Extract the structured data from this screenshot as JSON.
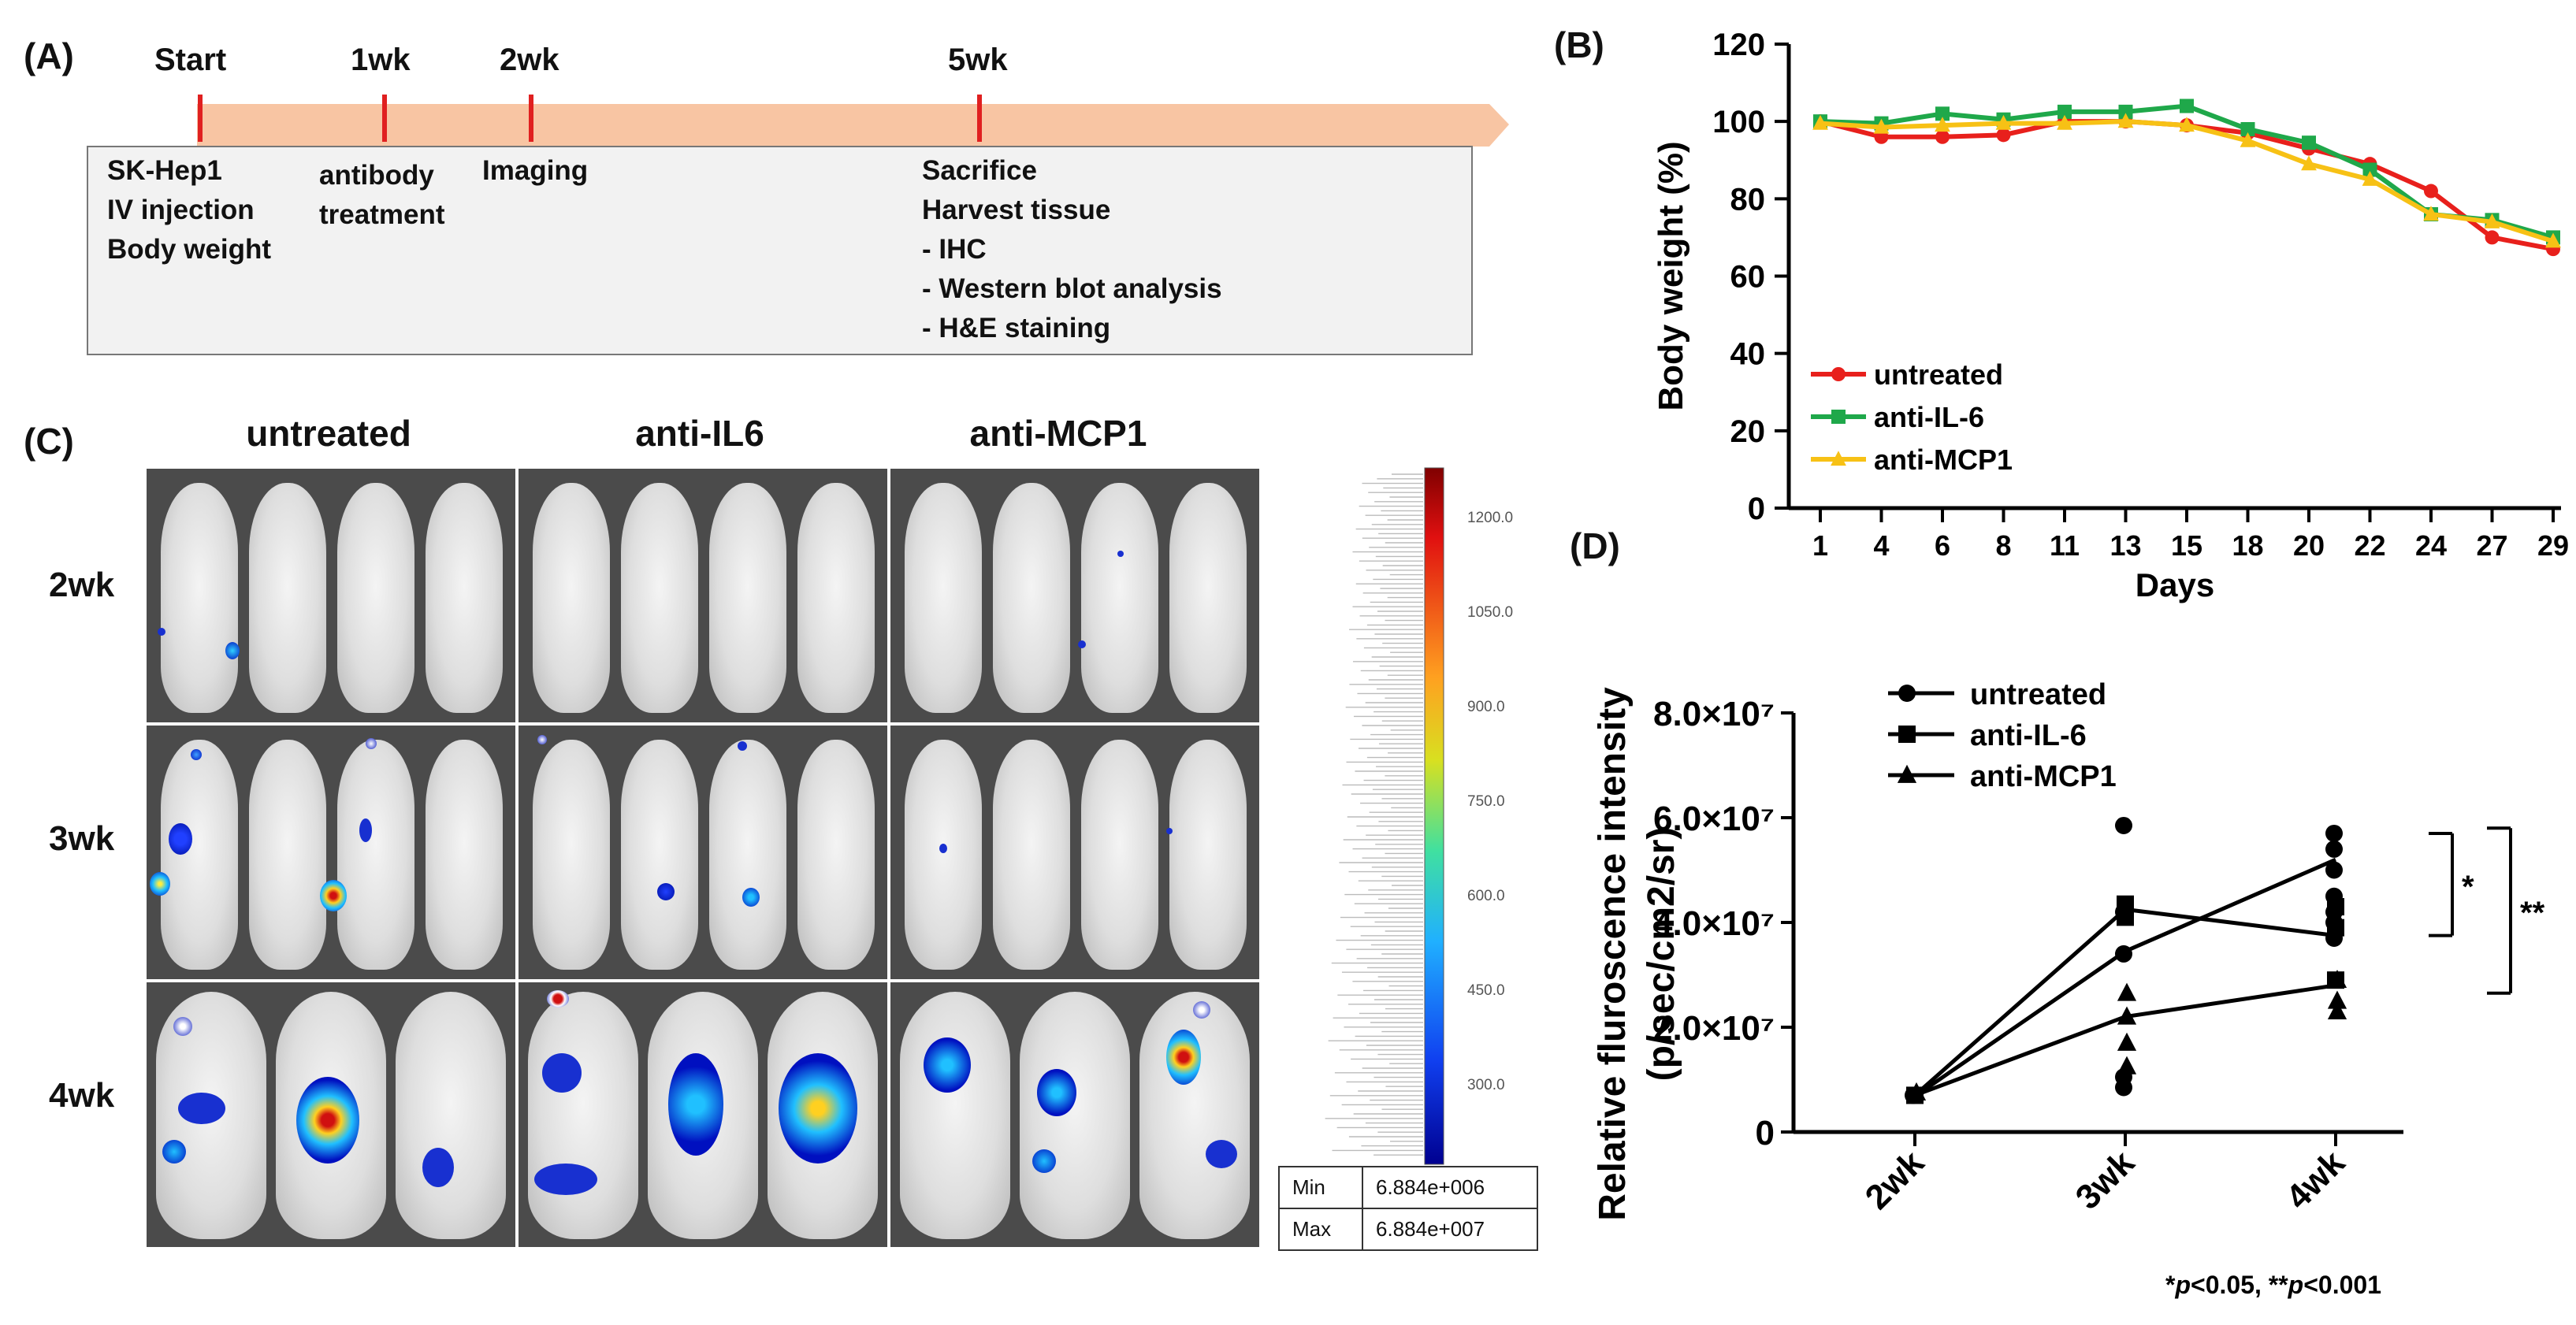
{
  "panel_labels": {
    "a": "(A)",
    "b": "(B)",
    "c": "(C)",
    "d": "(D)"
  },
  "timeline": {
    "ticks": [
      "Start",
      "1wk",
      "2wk",
      "5wk"
    ],
    "boxes": [
      "SK-Hep1\nIV injection\nBody weight",
      "antibody\ntreatment",
      "Imaging",
      "Sacrifice\nHarvest tissue\n- IHC\n- Western blot analysis\n- H&E staining"
    ]
  },
  "imaging": {
    "columns": [
      "untreated",
      "anti-IL6",
      "anti-MCP1"
    ],
    "rows": [
      "2wk",
      "3wk",
      "4wk"
    ],
    "colorbar_ticks": [
      "1200.0",
      "1050.0",
      "900.0",
      "750.0",
      "600.0",
      "450.0",
      "300.0"
    ],
    "min_label": "Min",
    "min_value": "6.884e+006",
    "max_label": "Max",
    "max_value": "6.884e+007"
  },
  "chart_data": [
    {
      "id": "B",
      "type": "line",
      "xlabel": "Days",
      "ylabel": "Body weight (%)",
      "categories": [
        "1",
        "4",
        "6",
        "8",
        "11",
        "13",
        "15",
        "18",
        "20",
        "22",
        "24",
        "27",
        "29"
      ],
      "ylim": [
        0,
        120
      ],
      "yticks": [
        "0",
        "20",
        "40",
        "60",
        "80",
        "100",
        "120"
      ],
      "legend_position": "bottom-left",
      "series": [
        {
          "name": "untreated",
          "color": "#e8201c",
          "marker": "circle",
          "values": [
            100,
            96,
            96,
            96.5,
            100,
            100,
            99,
            97,
            93,
            89,
            82,
            70,
            67
          ]
        },
        {
          "name": "anti-IL-6",
          "color": "#1fa84a",
          "marker": "square",
          "values": [
            100,
            99.5,
            102,
            100.5,
            102.5,
            102.5,
            104,
            98,
            94.5,
            87.5,
            76,
            74.5,
            70
          ]
        },
        {
          "name": "anti-MCP1",
          "color": "#f7c115",
          "marker": "triangle",
          "values": [
            99.5,
            98.5,
            99,
            99.5,
            99.5,
            100,
            99,
            95,
            89,
            85,
            76,
            74,
            69
          ]
        }
      ]
    },
    {
      "id": "D",
      "type": "scatter",
      "ylabel_line1": "Relative fluroscence intensity",
      "ylabel_line2": "(p/sec/cm2/sr)",
      "categories": [
        "2wk",
        "3wk",
        "4wk"
      ],
      "ylim": [
        0,
        80000000
      ],
      "yticks": [
        {
          "value": 0,
          "label": "0"
        },
        {
          "value": 20000000,
          "label": "2.0×10⁷"
        },
        {
          "value": 40000000,
          "label": "4.0×10⁷"
        },
        {
          "value": 60000000,
          "label": "6.0×10⁷"
        },
        {
          "value": 80000000,
          "label": "8.0×10⁷"
        }
      ],
      "legend_position": "top-left",
      "series": [
        {
          "name": "untreated",
          "marker": "circle",
          "points": [
            [
              0,
              7000000
            ],
            [
              1,
              58500000
            ],
            [
              1,
              42000000
            ],
            [
              1,
              34000000
            ],
            [
              1,
              10500000
            ],
            [
              1,
              8500000
            ],
            [
              2,
              57000000
            ],
            [
              2,
              54000000
            ],
            [
              2,
              50000000
            ],
            [
              2,
              45000000
            ],
            [
              2,
              42000000
            ],
            [
              2,
              40000000
            ],
            [
              2,
              37000000
            ]
          ],
          "mean": [
            6800000,
            34500000,
            52000000
          ]
        },
        {
          "name": "anti-IL-6",
          "marker": "square",
          "points": [
            [
              0,
              7000000
            ],
            [
              1,
              43500000
            ],
            [
              1,
              42000000
            ],
            [
              1,
              41000000
            ],
            [
              2,
              43000000
            ],
            [
              2,
              39000000
            ],
            [
              2,
              29000000
            ]
          ],
          "mean": [
            7000000,
            42500000,
            37500000
          ]
        },
        {
          "name": "anti-MCP1",
          "marker": "triangle",
          "points": [
            [
              0,
              7500000
            ],
            [
              1,
              26500000
            ],
            [
              1,
              22000000
            ],
            [
              1,
              17000000
            ],
            [
              1,
              12500000
            ],
            [
              2,
              29000000
            ],
            [
              2,
              25000000
            ],
            [
              2,
              23000000
            ]
          ],
          "mean": [
            7000000,
            22000000,
            28000000
          ]
        }
      ],
      "significance": [
        {
          "label": "*",
          "from": 57000000,
          "to": 37500000
        },
        {
          "label": "**",
          "from": 58000000,
          "to": 26500000
        }
      ],
      "footnote_parts": [
        "*",
        "p",
        "<0.05, **",
        "p",
        "<0.001"
      ]
    }
  ]
}
